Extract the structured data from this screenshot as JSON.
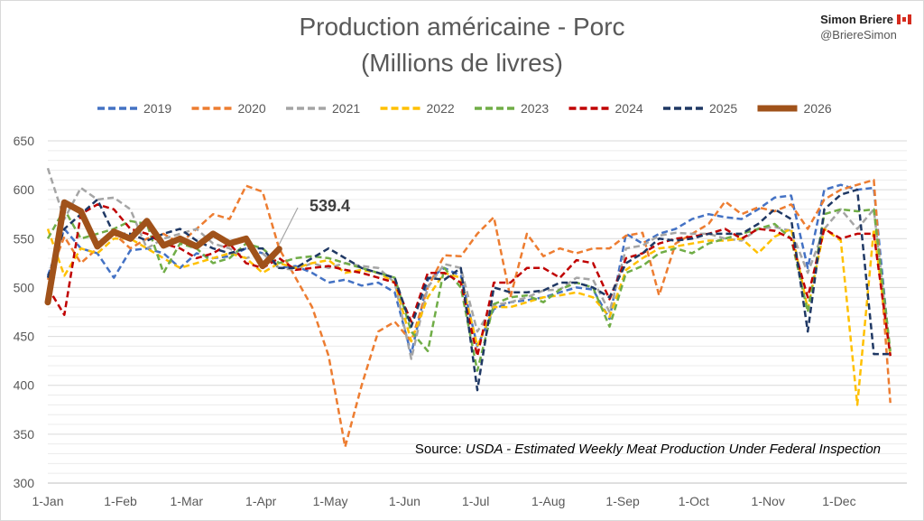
{
  "header": {
    "title_line1": "Production américaine - Porc",
    "title_line2": "(Millions de livres)",
    "author_name": "Simon Briere",
    "author_handle": "@BriereSimon",
    "flag_icon": "canada-flag-icon"
  },
  "source": {
    "label": "Source:",
    "text": "USDA - Estimated Weekly Meat Production Under Federal Inspection"
  },
  "chart_data": {
    "type": "line",
    "title": "Production américaine - Porc",
    "subtitle": "(Millions de livres)",
    "xlabel": "",
    "ylabel": "",
    "ylim": [
      300,
      650
    ],
    "yticks": [
      300,
      350,
      400,
      450,
      500,
      550,
      600,
      650
    ],
    "x_unit": "week",
    "x_range": [
      1,
      53
    ],
    "xtick_labels": [
      {
        "label": "1-Jan",
        "week": 1.0
      },
      {
        "label": "1-Feb",
        "week": 5.4
      },
      {
        "label": "1-Mar",
        "week": 9.4
      },
      {
        "label": "1-Apr",
        "week": 13.9
      },
      {
        "label": "1-May",
        "week": 18.1
      },
      {
        "label": "1-Jun",
        "week": 22.6
      },
      {
        "label": "1-Jul",
        "week": 26.9
      },
      {
        "label": "1-Aug",
        "week": 31.3
      },
      {
        "label": "1-Sep",
        "week": 35.8
      },
      {
        "label": "1-Oct",
        "week": 40.1
      },
      {
        "label": "1-Nov",
        "week": 44.6
      },
      {
        "label": "1-Dec",
        "week": 48.9
      }
    ],
    "grid": "horizontal",
    "legend_position": "top",
    "annotation": {
      "text": "539.4",
      "week": 15,
      "value": 539.4
    },
    "series": [
      {
        "name": "2019",
        "color": "#4472c4",
        "style": "dashed",
        "values": [
          512,
          560,
          540,
          535,
          510,
          538,
          540,
          535,
          520,
          535,
          530,
          532,
          540,
          535,
          520,
          522,
          515,
          505,
          508,
          502,
          505,
          495,
          432,
          508,
          520,
          512,
          440,
          478,
          485,
          487,
          490,
          495,
          500,
          498,
          468,
          555,
          545,
          555,
          560,
          570,
          575,
          572,
          570,
          580,
          592,
          594,
          520,
          600,
          605,
          600,
          602,
          430
        ]
      },
      {
        "name": "2020",
        "color": "#ed7d31",
        "style": "dashed",
        "values": [
          508,
          552,
          525,
          540,
          555,
          540,
          550,
          555,
          545,
          560,
          575,
          570,
          604,
          598,
          540,
          510,
          480,
          430,
          337,
          400,
          455,
          465,
          445,
          500,
          533,
          532,
          555,
          572,
          490,
          555,
          532,
          540,
          535,
          540,
          540,
          553,
          556,
          492,
          545,
          555,
          565,
          588,
          575,
          582,
          578,
          585,
          560,
          590,
          600,
          605,
          610,
          382
        ]
      },
      {
        "name": "2021",
        "color": "#a5a5a5",
        "style": "dashed",
        "values": [
          622,
          570,
          602,
          590,
          592,
          580,
          540,
          550,
          555,
          560,
          545,
          540,
          530,
          535,
          520,
          518,
          525,
          520,
          525,
          522,
          520,
          505,
          427,
          500,
          524,
          520,
          455,
          482,
          485,
          490,
          497,
          498,
          510,
          508,
          475,
          540,
          543,
          553,
          556,
          555,
          555,
          550,
          548,
          560,
          562,
          558,
          515,
          560,
          580,
          560,
          580,
          430
        ]
      },
      {
        "name": "2022",
        "color": "#ffc000",
        "style": "dashed",
        "values": [
          560,
          512,
          540,
          535,
          550,
          550,
          540,
          530,
          520,
          525,
          530,
          535,
          530,
          515,
          525,
          520,
          525,
          528,
          515,
          518,
          515,
          505,
          445,
          490,
          515,
          510,
          440,
          480,
          480,
          485,
          490,
          492,
          495,
          490,
          470,
          518,
          530,
          540,
          542,
          545,
          548,
          548,
          550,
          535,
          552,
          560,
          478,
          560,
          548,
          380,
          560,
          430
        ]
      },
      {
        "name": "2023",
        "color": "#70ad47",
        "style": "dashed",
        "values": [
          550,
          580,
          550,
          555,
          560,
          568,
          565,
          515,
          545,
          540,
          525,
          530,
          545,
          540,
          525,
          530,
          532,
          530,
          525,
          520,
          515,
          510,
          455,
          435,
          520,
          500,
          415,
          483,
          490,
          492,
          485,
          498,
          505,
          500,
          460,
          515,
          522,
          535,
          540,
          535,
          545,
          550,
          555,
          560,
          565,
          550,
          475,
          575,
          580,
          578,
          580,
          435
        ]
      },
      {
        "name": "2024",
        "color": "#c00000",
        "style": "dashed",
        "values": [
          500,
          472,
          575,
          585,
          580,
          560,
          555,
          545,
          540,
          530,
          535,
          545,
          525,
          520,
          530,
          518,
          520,
          522,
          518,
          515,
          510,
          505,
          465,
          515,
          515,
          505,
          430,
          505,
          505,
          520,
          520,
          510,
          528,
          525,
          488,
          530,
          535,
          545,
          550,
          552,
          555,
          560,
          550,
          560,
          558,
          550,
          490,
          560,
          550,
          555,
          555,
          430
        ]
      },
      {
        "name": "2025",
        "color": "#1f3864",
        "style": "dashed",
        "values": [
          510,
          560,
          575,
          590,
          555,
          555,
          548,
          555,
          560,
          548,
          540,
          535,
          540,
          540,
          520,
          520,
          530,
          540,
          530,
          520,
          515,
          510,
          460,
          510,
          508,
          520,
          395,
          500,
          495,
          495,
          497,
          505,
          505,
          500,
          490,
          525,
          535,
          550,
          548,
          550,
          555,
          555,
          555,
          565,
          580,
          570,
          455,
          580,
          595,
          600,
          432,
          432
        ]
      },
      {
        "name": "2026",
        "color": "#a0521a",
        "style": "solid",
        "values": [
          485,
          587,
          578,
          542,
          557,
          550,
          568,
          543,
          550,
          542,
          555,
          545,
          550,
          522,
          539.4
        ]
      }
    ]
  }
}
